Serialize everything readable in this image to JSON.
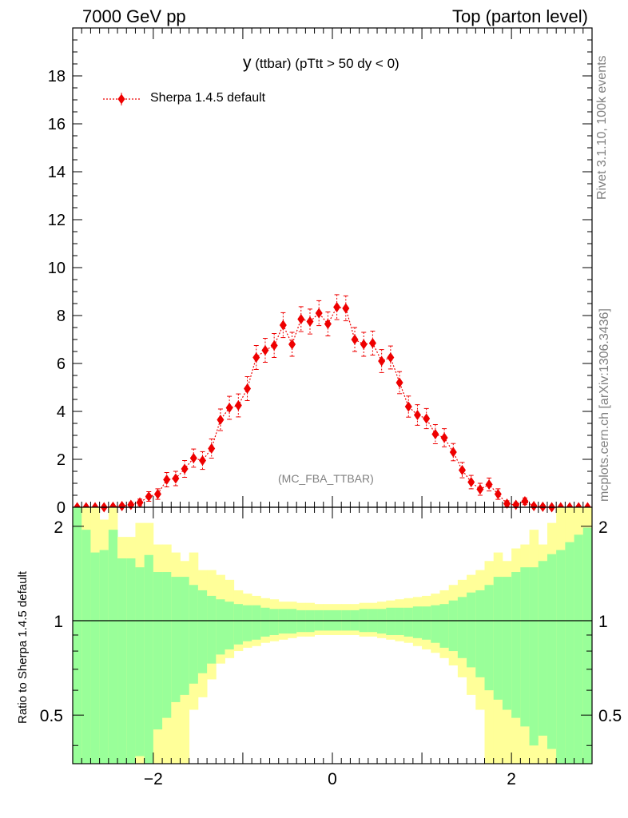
{
  "header": {
    "left": "7000 GeV pp",
    "right": "Top (parton level)"
  },
  "side_labels": {
    "rivet": "Rivet 3.1.10,  100k events",
    "mcplots": "mcplots.cern.ch [arXiv:1306.3436]"
  },
  "colors": {
    "series": "#ee0000",
    "band_inner": "#99ff99",
    "band_outer": "#ffff99",
    "text_gray": "#808080"
  },
  "chart_data": [
    {
      "type": "scatter",
      "title_main": "y",
      "title_rest": "(ttbar) (pTtt > 50 dy < 0)",
      "watermark": "(MC_FBA_TTBAR)",
      "legend_position": "top-left",
      "xlim": [
        -2.9,
        2.9
      ],
      "ylim": [
        0,
        20
      ],
      "yticks": [
        0,
        2,
        4,
        6,
        8,
        10,
        12,
        14,
        16,
        18
      ],
      "series": [
        {
          "name": "Sherpa 1.4.5 default",
          "x": [
            -2.85,
            -2.75,
            -2.65,
            -2.55,
            -2.45,
            -2.35,
            -2.25,
            -2.15,
            -2.05,
            -1.95,
            -1.85,
            -1.75,
            -1.65,
            -1.55,
            -1.45,
            -1.35,
            -1.25,
            -1.15,
            -1.05,
            -0.95,
            -0.85,
            -0.75,
            -0.65,
            -0.55,
            -0.45,
            -0.35,
            -0.25,
            -0.15,
            -0.05,
            0.05,
            0.15,
            0.25,
            0.35,
            0.45,
            0.55,
            0.65,
            0.75,
            0.85,
            0.95,
            1.05,
            1.15,
            1.25,
            1.35,
            1.45,
            1.55,
            1.65,
            1.75,
            1.85,
            1.95,
            2.05,
            2.15,
            2.25,
            2.35,
            2.45,
            2.55,
            2.65,
            2.75,
            2.85
          ],
          "y": [
            0.0,
            0.0,
            0.0,
            0.0,
            0.02,
            0.05,
            0.1,
            0.2,
            0.45,
            0.55,
            1.15,
            1.2,
            1.6,
            2.05,
            1.95,
            2.45,
            3.65,
            4.15,
            4.25,
            4.95,
            6.25,
            6.55,
            6.75,
            7.6,
            6.8,
            7.85,
            7.75,
            8.1,
            7.65,
            8.35,
            8.3,
            7.0,
            6.8,
            6.85,
            6.1,
            6.25,
            5.2,
            4.2,
            3.85,
            3.7,
            3.05,
            2.9,
            2.3,
            1.55,
            1.05,
            0.75,
            0.95,
            0.55,
            0.15,
            0.1,
            0.25,
            0.05,
            0.02,
            0.0,
            0.0,
            0.0,
            0.0,
            0.0
          ],
          "err": [
            0,
            0,
            0,
            0,
            0.05,
            0.07,
            0.1,
            0.14,
            0.2,
            0.22,
            0.3,
            0.3,
            0.35,
            0.38,
            0.37,
            0.4,
            0.45,
            0.48,
            0.48,
            0.5,
            0.5,
            0.5,
            0.5,
            0.52,
            0.5,
            0.52,
            0.52,
            0.52,
            0.5,
            0.52,
            0.52,
            0.5,
            0.5,
            0.5,
            0.48,
            0.48,
            0.46,
            0.44,
            0.43,
            0.42,
            0.4,
            0.38,
            0.36,
            0.32,
            0.28,
            0.25,
            0.27,
            0.22,
            0.12,
            0.1,
            0.14,
            0.07,
            0.05,
            0,
            0,
            0,
            0,
            0
          ]
        }
      ]
    },
    {
      "type": "area",
      "ylabel": "Ratio to Sherpa 1.4.5 default",
      "ylim": [
        0.35,
        2.3
      ],
      "log_y": true,
      "yticks": [
        0.5,
        1,
        2
      ],
      "xlim": [
        -2.9,
        2.9
      ],
      "xticks": [
        -2,
        0,
        2
      ],
      "reference_line": 1,
      "band_x_edges": [
        -2.9,
        -2.8,
        -2.7,
        -2.6,
        -2.5,
        -2.4,
        -2.3,
        -2.2,
        -2.1,
        -2.0,
        -1.9,
        -1.8,
        -1.7,
        -1.6,
        -1.5,
        -1.4,
        -1.3,
        -1.2,
        -1.1,
        -1.0,
        -0.9,
        -0.8,
        -0.7,
        -0.6,
        -0.5,
        -0.4,
        -0.3,
        -0.2,
        -0.1,
        0.0,
        0.1,
        0.2,
        0.3,
        0.4,
        0.5,
        0.6,
        0.7,
        0.8,
        0.9,
        1.0,
        1.1,
        1.2,
        1.3,
        1.4,
        1.5,
        1.6,
        1.7,
        1.8,
        1.9,
        2.0,
        2.1,
        2.2,
        2.3,
        2.4,
        2.5,
        2.6,
        2.7,
        2.8,
        2.9
      ],
      "inner_upper": [
        2.3,
        1.95,
        1.65,
        1.68,
        1.95,
        1.58,
        1.58,
        1.48,
        1.62,
        1.43,
        1.43,
        1.38,
        1.38,
        1.3,
        1.25,
        1.2,
        1.17,
        1.15,
        1.13,
        1.12,
        1.12,
        1.1,
        1.09,
        1.09,
        1.09,
        1.08,
        1.08,
        1.08,
        1.08,
        1.08,
        1.08,
        1.08,
        1.09,
        1.09,
        1.09,
        1.1,
        1.1,
        1.1,
        1.11,
        1.11,
        1.12,
        1.13,
        1.16,
        1.19,
        1.23,
        1.25,
        1.3,
        1.38,
        1.38,
        1.43,
        1.48,
        1.48,
        1.55,
        1.63,
        1.68,
        1.78,
        1.88,
        1.98
      ],
      "outer_upper": [
        2.3,
        2.3,
        2.3,
        2.1,
        2.3,
        1.85,
        1.85,
        2.05,
        2.05,
        1.75,
        1.75,
        1.65,
        1.55,
        1.65,
        1.45,
        1.45,
        1.4,
        1.35,
        1.25,
        1.22,
        1.2,
        1.18,
        1.17,
        1.15,
        1.15,
        1.14,
        1.14,
        1.13,
        1.13,
        1.13,
        1.13,
        1.13,
        1.14,
        1.14,
        1.15,
        1.16,
        1.17,
        1.18,
        1.19,
        1.2,
        1.22,
        1.25,
        1.3,
        1.35,
        1.4,
        1.45,
        1.55,
        1.65,
        1.55,
        1.7,
        1.75,
        1.95,
        1.75,
        2.05,
        2.3,
        2.3,
        2.3,
        2.3
      ],
      "inner_lower": [
        0.35,
        0.35,
        0.35,
        0.35,
        0.35,
        0.35,
        0.35,
        0.37,
        0.35,
        0.45,
        0.49,
        0.55,
        0.58,
        0.63,
        0.68,
        0.73,
        0.78,
        0.81,
        0.84,
        0.86,
        0.87,
        0.89,
        0.9,
        0.91,
        0.91,
        0.92,
        0.92,
        0.93,
        0.93,
        0.93,
        0.93,
        0.93,
        0.92,
        0.92,
        0.91,
        0.9,
        0.9,
        0.89,
        0.88,
        0.87,
        0.85,
        0.82,
        0.8,
        0.76,
        0.71,
        0.66,
        0.6,
        0.56,
        0.52,
        0.49,
        0.46,
        0.4,
        0.43,
        0.39,
        0.35,
        0.35,
        0.35,
        0.35
      ],
      "outer_lower": [
        0.35,
        0.35,
        0.35,
        0.35,
        0.35,
        0.35,
        0.35,
        0.35,
        0.35,
        0.35,
        0.35,
        0.35,
        0.35,
        0.52,
        0.57,
        0.65,
        0.73,
        0.76,
        0.8,
        0.82,
        0.83,
        0.85,
        0.86,
        0.87,
        0.88,
        0.89,
        0.89,
        0.9,
        0.9,
        0.9,
        0.9,
        0.9,
        0.89,
        0.89,
        0.88,
        0.87,
        0.86,
        0.85,
        0.83,
        0.81,
        0.79,
        0.76,
        0.72,
        0.66,
        0.58,
        0.52,
        0.35,
        0.35,
        0.35,
        0.35,
        0.35,
        0.35,
        0.35,
        0.35,
        0.35,
        0.35,
        0.35,
        0.35
      ]
    }
  ]
}
